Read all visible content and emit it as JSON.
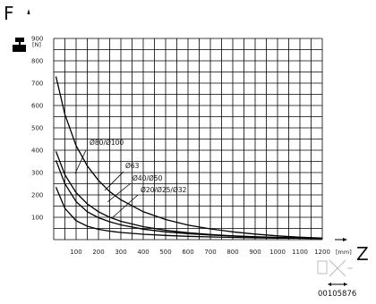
{
  "chart_data": {
    "type": "line",
    "y_axis": {
      "letter": "F",
      "unit": "[N]",
      "range": [
        0,
        900
      ],
      "ticks": [
        100,
        200,
        300,
        400,
        500,
        600,
        700,
        800,
        900
      ]
    },
    "x_axis": {
      "letter": "Z",
      "unit": "[mm]",
      "range": [
        0,
        1200
      ],
      "ticks": [
        100,
        200,
        300,
        400,
        500,
        600,
        700,
        800,
        900,
        1000,
        1100,
        1200
      ]
    },
    "grid": true,
    "series": [
      {
        "name": "Ø80/Ø100",
        "x": [
          10,
          50,
          100,
          150,
          200,
          250,
          300,
          400,
          500,
          600,
          700,
          800,
          900,
          1000,
          1100,
          1200
        ],
        "y": [
          730,
          560,
          420,
          330,
          265,
          215,
          178,
          125,
          90,
          65,
          48,
          35,
          25,
          17,
          11,
          7
        ]
      },
      {
        "name": "Ø63",
        "x": [
          10,
          50,
          100,
          150,
          200,
          250,
          300,
          400,
          500,
          600,
          700,
          800,
          900,
          1000,
          1100,
          1200
        ],
        "y": [
          395,
          290,
          210,
          160,
          125,
          100,
          82,
          58,
          42,
          31,
          23,
          17,
          13,
          10,
          8,
          6
        ]
      },
      {
        "name": "Ø40/Ø50",
        "x": [
          10,
          50,
          100,
          150,
          200,
          250,
          300,
          400,
          500,
          600,
          700,
          800,
          900,
          1000,
          1100,
          1200
        ],
        "y": [
          355,
          250,
          170,
          125,
          98,
          80,
          66,
          47,
          35,
          27,
          21,
          16,
          12,
          9,
          7,
          5
        ]
      },
      {
        "name": "Ø20/Ø25/Ø32",
        "x": [
          10,
          50,
          100,
          150,
          200,
          250,
          300,
          400,
          500,
          600,
          700,
          800,
          900,
          1000,
          1100,
          1200
        ],
        "y": [
          235,
          140,
          85,
          60,
          46,
          38,
          32,
          24,
          19,
          15,
          12,
          10,
          8,
          7,
          6,
          5
        ]
      }
    ]
  },
  "image_code": "00105876"
}
